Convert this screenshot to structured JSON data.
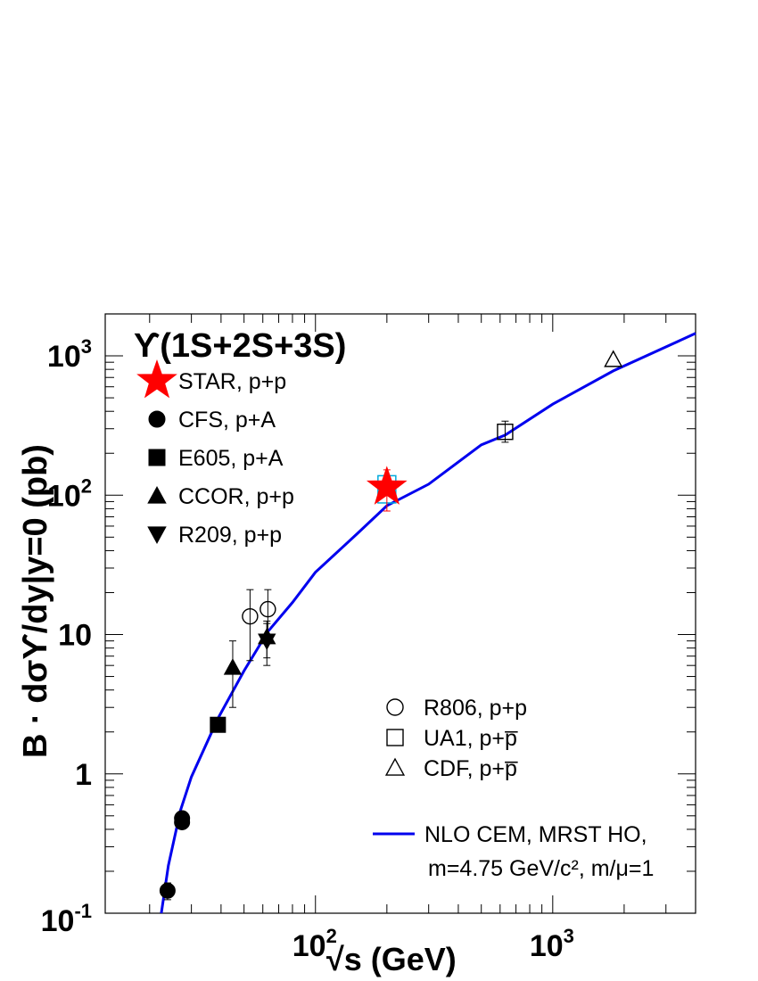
{
  "chart_data": {
    "type": "scatter",
    "title": "ϒ(1S+2S+3S)",
    "xlabel": "√s (GeV)",
    "ylabel": "B · dσϒ/dy|y=0 (pb)",
    "x_scale": "log",
    "y_scale": "log",
    "xlim": [
      13,
      4000
    ],
    "ylim": [
      0.1,
      2000
    ],
    "grid": false,
    "x_ticks": [
      {
        "value": 100,
        "base": "10",
        "exp": "2"
      },
      {
        "value": 1000,
        "base": "10",
        "exp": "3"
      }
    ],
    "y_ticks": [
      {
        "value": 0.1,
        "base": "10",
        "exp": "-1"
      },
      {
        "value": 1,
        "base": "1",
        "exp": ""
      },
      {
        "value": 10,
        "base": "10",
        "exp": ""
      },
      {
        "value": 100,
        "base": "10",
        "exp": "2"
      },
      {
        "value": 1000,
        "base": "10",
        "exp": "3"
      }
    ],
    "series": [
      {
        "name": "STAR, p+p",
        "marker": "star",
        "filled": true,
        "color": "#ff0000",
        "points": [
          {
            "x": 200,
            "y": 114,
            "ylo": 77,
            "yhi": 152
          }
        ]
      },
      {
        "name": "CFS, p+A",
        "marker": "circle",
        "filled": true,
        "color": "#000000",
        "points": [
          {
            "x": 23.8,
            "y": 0.145,
            "ylo": 0.125,
            "yhi": 0.165
          },
          {
            "x": 27.4,
            "y": 0.45,
            "ylo": 0.41,
            "yhi": 0.49
          },
          {
            "x": 27.4,
            "y": 0.48,
            "ylo": 0.44,
            "yhi": 0.52
          }
        ]
      },
      {
        "name": "E605, p+A",
        "marker": "square",
        "filled": true,
        "color": "#000000",
        "points": [
          {
            "x": 38.8,
            "y": 2.25,
            "ylo": 2.0,
            "yhi": 2.5
          }
        ]
      },
      {
        "name": "CCOR, p+p",
        "marker": "triangle-up",
        "filled": true,
        "color": "#000000",
        "points": [
          {
            "x": 44.8,
            "y": 5.8,
            "ylo": 3.0,
            "yhi": 9.0
          },
          {
            "x": 62.4,
            "y": 9.6,
            "ylo": 6.8,
            "yhi": 12.5
          }
        ]
      },
      {
        "name": "R209, p+p",
        "marker": "triangle-down",
        "filled": true,
        "color": "#000000",
        "points": [
          {
            "x": 62.4,
            "y": 9.0,
            "ylo": 6.0,
            "yhi": 12.0
          }
        ]
      },
      {
        "name": "R806, p+p",
        "marker": "circle",
        "filled": false,
        "color": "#000000",
        "points": [
          {
            "x": 53,
            "y": 13.5,
            "ylo": 6.5,
            "yhi": 21
          },
          {
            "x": 63,
            "y": 15.2,
            "ylo": 9.0,
            "yhi": 21
          }
        ]
      },
      {
        "name": "UA1, p+p̅",
        "marker": "square",
        "filled": false,
        "color": "#000000",
        "points": [
          {
            "x": 630,
            "y": 285,
            "ylo": 240,
            "yhi": 340
          }
        ]
      },
      {
        "name": "CDF, p+p̅",
        "marker": "triangle-up",
        "filled": false,
        "color": "#000000",
        "points": [
          {
            "x": 1800,
            "y": 940
          }
        ]
      }
    ],
    "star_box": {
      "x": 200,
      "ylo": 88,
      "yhi": 138,
      "color": "#00aadd"
    },
    "curve": {
      "name": "NLO CEM, MRST HO,",
      "name_line2": "m=4.75 GeV/c², m/μ=1",
      "color": "#0000ee",
      "points": [
        [
          22.4,
          0.1
        ],
        [
          24,
          0.22
        ],
        [
          27,
          0.55
        ],
        [
          30,
          0.95
        ],
        [
          38.8,
          2.5
        ],
        [
          50,
          5.5
        ],
        [
          63,
          10.5
        ],
        [
          80,
          17
        ],
        [
          100,
          28
        ],
        [
          150,
          53
        ],
        [
          200,
          84
        ],
        [
          300,
          120
        ],
        [
          500,
          230
        ],
        [
          630,
          270
        ],
        [
          1000,
          450
        ],
        [
          1800,
          780
        ],
        [
          4000,
          1450
        ]
      ]
    },
    "legend_upper": [
      "STAR, p+p",
      "CFS, p+A",
      "E605, p+A",
      "CCOR, p+p",
      "R209, p+p"
    ],
    "legend_lower": [
      "R806, p+p",
      "UA1, p+p̅",
      "CDF, p+p̅"
    ],
    "legend_placement": "top-left and bottom-right"
  }
}
